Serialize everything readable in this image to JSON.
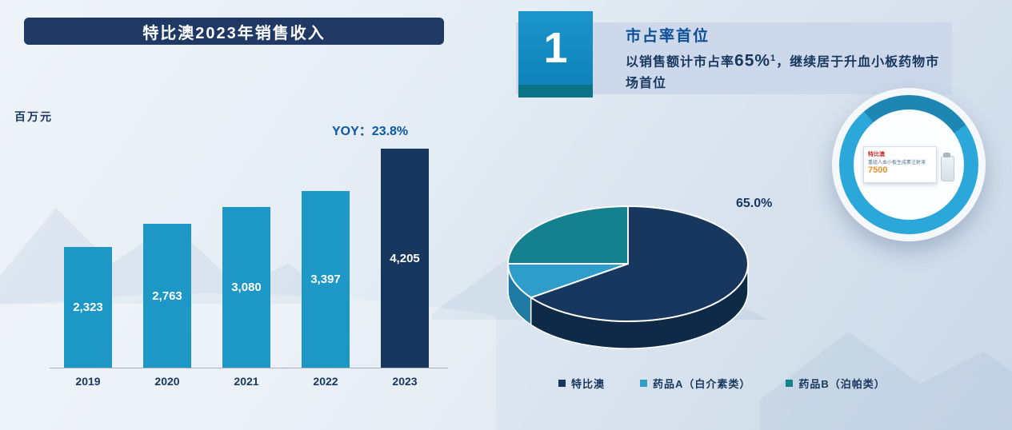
{
  "bar_chart": {
    "title": "特比澳2023年销售收入",
    "unit": "百万元",
    "yoy": "YOY：23.8%",
    "value_labels": [
      "2,323",
      "2,763",
      "3,080",
      "3,397",
      "4,205"
    ],
    "bar_colors": [
      "#1d97c5",
      "#1d97c5",
      "#1d97c5",
      "#1d97c5",
      "#17375e"
    ],
    "title_bg": "#1f3864"
  },
  "callout": {
    "number": "1",
    "title": "市占率首位",
    "body_prefix": "以销售额计市占率",
    "body_highlight": "65%",
    "body_superscript": "1",
    "body_suffix": "，继续居于升血小板药物市场首位",
    "band_color": "#cdd9ea",
    "number_box_color": "#1289c2",
    "number_strip_color": "#0b7388"
  },
  "pie": {
    "data_label": "65.0%",
    "slice_colors": [
      "#17375e",
      "#2f9dc9",
      "#15818e"
    ],
    "side_colors": [
      "#0e2a47",
      "#1f7ba3",
      "#0e5f6b"
    ],
    "legend": [
      {
        "label": "特比澳",
        "color": "#17375e"
      },
      {
        "label": "药品A（白介素类）",
        "color": "#2f9dc9"
      },
      {
        "label": "药品B（泊帕类）",
        "color": "#15818e"
      }
    ]
  },
  "product": {
    "brand": "特比澳",
    "name": "重组人血小板生成素注射液",
    "dose": "7500"
  },
  "chart_data": [
    {
      "type": "bar",
      "title": "特比澳2023年销售收入",
      "categories": [
        "2019",
        "2020",
        "2021",
        "2022",
        "2023"
      ],
      "values": [
        2323,
        2763,
        3080,
        3397,
        4205
      ],
      "ylabel": "百万元",
      "annotations": [
        "YOY：23.8%"
      ],
      "ylim": [
        0,
        4500
      ],
      "grid": false,
      "legend_position": "none"
    },
    {
      "type": "pie",
      "labels": [
        "特比澳",
        "药品A（白介素类）",
        "药品B（泊帕类）"
      ],
      "values": [
        65,
        10,
        25
      ],
      "data_labels": [
        "65.0%"
      ],
      "style": "3d",
      "legend_position": "bottom"
    }
  ]
}
